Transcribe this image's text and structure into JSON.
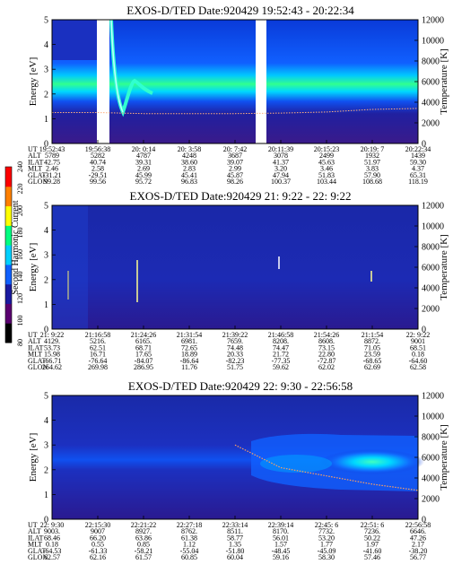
{
  "colorbar": {
    "label": "Second Harmonic Current",
    "ticks": [
      "80",
      "100",
      "120",
      "140",
      "160",
      "180",
      "200",
      "220",
      "240"
    ],
    "colors": [
      "#000000",
      "#5a0070",
      "#1a1aa0",
      "#1060ff",
      "#00d0ff",
      "#00ff80",
      "#ffff00",
      "#ff8000",
      "#ff0000"
    ]
  },
  "panels": [
    {
      "title": "EXOS-D/TED   Date:920429  19:52:43 - 20:22:34",
      "ylabel": "Energy [eV]",
      "yticks_left": [
        "0",
        "1",
        "2",
        "3",
        "4",
        "5"
      ],
      "ylabel_right": "Temperature [K]",
      "yticks_right": [
        "0",
        "2000",
        "4000",
        "6000",
        "8000",
        "10000",
        "12000"
      ],
      "table_labels": [
        "UT",
        "ALT",
        "ILAT",
        "MLT",
        "GLAT",
        "GLON"
      ],
      "table": [
        [
          "19:52:43",
          "5789",
          "42.75",
          "2.46",
          "-31.21",
          "99.28"
        ],
        [
          "19:56:38",
          "5282",
          "40.74",
          "2.58",
          "-29.51",
          "99.56"
        ],
        [
          "20: 0:14",
          "4787",
          "39.31",
          "2.69",
          "45.99",
          "95.72"
        ],
        [
          "20: 3:58",
          "4248",
          "38.60",
          "2.83",
          "45.41",
          "96.83"
        ],
        [
          "20: 7:42",
          "3687",
          "39.07",
          "2.99",
          "45.87",
          "98.26"
        ],
        [
          "20:11:39",
          "3078",
          "41.37",
          "3.20",
          "47.94",
          "100.37"
        ],
        [
          "20:15:23",
          "2499",
          "45.63",
          "3.46",
          "51.83",
          "103.44"
        ],
        [
          "20:19: 7",
          "1932",
          "51.97",
          "3.83",
          "57.90",
          "108.68"
        ],
        [
          "20:22:34",
          "1439",
          "59.30",
          "4.37",
          "65.31",
          "118.19"
        ]
      ]
    },
    {
      "title": "EXOS-D/TED   Date:920429  21: 9:22 - 22: 9:22",
      "ylabel": "Energy [eV]",
      "yticks_left": [
        "0",
        "1",
        "2",
        "3",
        "4",
        "5"
      ],
      "ylabel_right": "Temperature [K]",
      "yticks_right": [
        "0",
        "2000",
        "4000",
        "6000",
        "8000",
        "10000",
        "12000"
      ],
      "table_labels": [
        "UT",
        "ALT",
        "ILAT",
        "MLT",
        "GLAT",
        "GLON"
      ],
      "table": [
        [
          "21: 9:22",
          "4129.",
          "53.73",
          "15.98",
          "-66.71",
          "264.62"
        ],
        [
          "21:16:58",
          "5216.",
          "62.51",
          "16.71",
          "-76.64",
          "269.98"
        ],
        [
          "21:24:26",
          "6165.",
          "68.71",
          "17.65",
          "-84.07",
          "286.95"
        ],
        [
          "21:31:54",
          "6981.",
          "72.65",
          "18.89",
          "-86.64",
          "11.76"
        ],
        [
          "21:39:22",
          "7659.",
          "74.48",
          "20.33",
          "-82.23",
          "51.75"
        ],
        [
          "21:46:58",
          "8208.",
          "74.47",
          "21.72",
          "-77.35",
          "59.62"
        ],
        [
          "21:54:26",
          "8608.",
          "73.15",
          "22.80",
          "-72.87",
          "62.02"
        ],
        [
          "21:1:54",
          "8872.",
          "71.05",
          "23.59",
          "-68.65",
          "62.69"
        ],
        [
          "22: 9:22",
          "9001",
          "68.51",
          "0.18",
          "-64.60",
          "62.58"
        ]
      ]
    },
    {
      "title": "EXOS-D/TED   Date:920429  22: 9:30 - 22:56:58",
      "ylabel": "Energy [eV]",
      "yticks_left": [
        "0",
        "1",
        "2",
        "3",
        "4",
        "5"
      ],
      "ylabel_right": "Temperature [K]",
      "yticks_right": [
        "0",
        "2000",
        "4000",
        "6000",
        "8000",
        "10000",
        "12000"
      ],
      "table_labels": [
        "UT",
        "ALT",
        "ILAT",
        "MLT",
        "GLAT",
        "GLON"
      ],
      "table": [
        [
          "22: 9:30",
          "9003.",
          "68.46",
          "0.18",
          "-64.53",
          "62.57"
        ],
        [
          "22:15:30",
          "9007",
          "66.20",
          "0.55",
          "-61.33",
          "62.16"
        ],
        [
          "22:21:22",
          "8927.",
          "63.86",
          "0.85",
          "-58.21",
          "61.57"
        ],
        [
          "22:27:18",
          "8762.",
          "61.38",
          "1.12",
          "-55.04",
          "60.85"
        ],
        [
          "22:33:14",
          "8511.",
          "58.77",
          "1.35",
          "-51.80",
          "60.04"
        ],
        [
          "22:39:14",
          "8170.",
          "56.01",
          "1.57",
          "-48.45",
          "59.16"
        ],
        [
          "22:45: 6",
          "7732.",
          "53.20",
          "1.77",
          "-45.09",
          "58.30"
        ],
        [
          "22:51: 6",
          "7236.",
          "50.22",
          "1.97",
          "-41.60",
          "57.46"
        ],
        [
          "22:56:58",
          "6646.",
          "47.26",
          "2.17",
          "-38.20",
          "56.77"
        ]
      ]
    }
  ],
  "chart_data": [
    {
      "type": "heatmap",
      "title": "EXOS-D/TED   Date:920429  19:52:43 - 20:22:34",
      "xlabel": "UT",
      "ylabel": "Energy [eV]",
      "ylabel_right": "Temperature [K]",
      "ylim": [
        0,
        5
      ],
      "ylim_right": [
        0,
        12000
      ],
      "x": [
        "19:52:43",
        "19:56:38",
        "20: 0:14",
        "20: 3:58",
        "20: 7:42",
        "20:11:39",
        "20:15:23",
        "20:19: 7",
        "20:22:34"
      ],
      "data_gaps_ut": [
        [
          "19:55:25",
          "19:56:30"
        ],
        [
          "20:10:40",
          "20:11:20"
        ]
      ],
      "band_energy_eV": 2.2,
      "temperature_K_estimate": [
        3000,
        3000,
        2900,
        2900,
        2900,
        2950,
        3050,
        3300,
        3400
      ]
    },
    {
      "type": "heatmap",
      "title": "EXOS-D/TED   Date:920429  21: 9:22 - 22: 9:22",
      "xlabel": "UT",
      "ylabel": "Energy [eV]",
      "ylabel_right": "Temperature [K]",
      "ylim": [
        0,
        5
      ],
      "ylim_right": [
        0,
        12000
      ],
      "x": [
        "21: 9:22",
        "21:16:58",
        "21:24:26",
        "21:31:54",
        "21:39:22",
        "21:46:58",
        "21:54:26",
        "21:1:54",
        "22: 9:22"
      ],
      "spikes_ut": [
        "21:10:10",
        "21:22:40",
        "21:46:55",
        "22:04:40"
      ]
    },
    {
      "type": "heatmap",
      "title": "EXOS-D/TED   Date:920429  22: 9:30 - 22:56:58",
      "xlabel": "UT",
      "ylabel": "Energy [eV]",
      "ylabel_right": "Temperature [K]",
      "ylim": [
        0,
        5
      ],
      "ylim_right": [
        0,
        12000
      ],
      "x": [
        "22: 9:30",
        "22:15:30",
        "22:21:22",
        "22:27:18",
        "22:33:14",
        "22:39:14",
        "22:45: 6",
        "22:51: 6",
        "22:56:58"
      ],
      "band_energy_eV": 2.5,
      "temperature_K_estimate": [
        null,
        null,
        null,
        null,
        7200,
        5000,
        4200,
        3400,
        2800
      ]
    }
  ]
}
